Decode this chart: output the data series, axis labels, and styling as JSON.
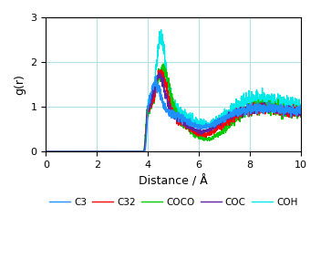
{
  "title": "",
  "xlabel": "Distance / Å",
  "ylabel": "g(r)",
  "xlim": [
    0,
    10
  ],
  "ylim": [
    0,
    3
  ],
  "yticks": [
    0,
    1,
    2,
    3
  ],
  "xticks": [
    0,
    2,
    4,
    6,
    8,
    10
  ],
  "grid": true,
  "grid_color": "#b0e0e8",
  "series": {
    "C3": {
      "color": "#1E90FF",
      "lw": 1.0
    },
    "C32": {
      "color": "#FF0000",
      "lw": 1.0
    },
    "COCO": {
      "color": "#00CC00",
      "lw": 1.0
    },
    "COC": {
      "color": "#6020A0",
      "lw": 1.0
    },
    "COH": {
      "color": "#00E8E8",
      "lw": 1.0
    }
  },
  "legend_order": [
    "C3",
    "C32",
    "COCO",
    "COC",
    "COH"
  ],
  "figsize": [
    3.52,
    2.95
  ],
  "dpi": 100
}
